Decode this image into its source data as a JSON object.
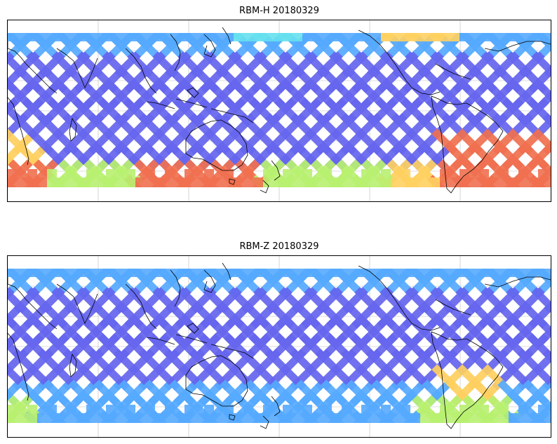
{
  "panels": [
    {
      "title": "RBM-H 20180329",
      "variant": "H"
    },
    {
      "title": "RBM-Z 20180329",
      "variant": "Z"
    }
  ],
  "colors": {
    "low": "#6666ee",
    "mid_low": "#55aaff",
    "mid": "#66e0ee",
    "mid_high": "#b8f070",
    "high": "#ffd060",
    "very_high": "#f07050",
    "coastline": "#000000",
    "gridline": "#bbbbbb"
  },
  "colormap": "jet"
}
